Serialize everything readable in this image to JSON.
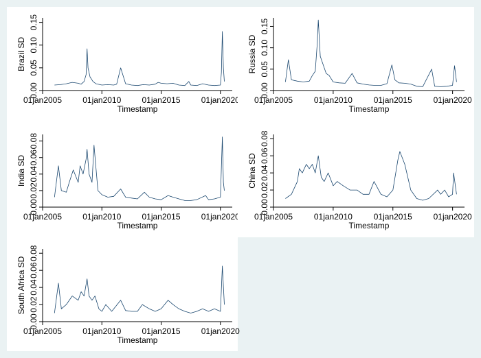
{
  "chart_data": [
    {
      "type": "line",
      "xlabel": "Timestamp",
      "ylabel": "Brazil SD",
      "x_ticks": [
        "01jan2005",
        "01jan2010",
        "01jan2015",
        "01jan2020"
      ],
      "y_ticks": [
        "0.00",
        "0.05",
        "0.10",
        "0.15"
      ],
      "xlim": [
        "2005-01-01",
        "2020-12-31"
      ],
      "ylim": [
        0,
        0.16
      ],
      "series_color": "#1a476f",
      "x": [
        "2006-01",
        "2006-07",
        "2007-01",
        "2007-07",
        "2008-01",
        "2008-04",
        "2008-07",
        "2008-09",
        "2008-10",
        "2008-11",
        "2009-01",
        "2009-04",
        "2009-07",
        "2010-01",
        "2010-07",
        "2011-01",
        "2011-04",
        "2011-08",
        "2012-01",
        "2012-07",
        "2013-01",
        "2013-07",
        "2014-01",
        "2014-07",
        "2014-10",
        "2015-01",
        "2015-07",
        "2016-01",
        "2016-07",
        "2017-01",
        "2017-05",
        "2017-07",
        "2018-01",
        "2018-07",
        "2019-01",
        "2019-07",
        "2020-01",
        "2020-02",
        "2020-03",
        "2020-04",
        "2020-05"
      ],
      "values": [
        0.012,
        0.013,
        0.015,
        0.018,
        0.016,
        0.014,
        0.02,
        0.035,
        0.092,
        0.05,
        0.03,
        0.02,
        0.015,
        0.012,
        0.013,
        0.012,
        0.014,
        0.05,
        0.015,
        0.012,
        0.011,
        0.013,
        0.012,
        0.014,
        0.018,
        0.016,
        0.015,
        0.016,
        0.012,
        0.011,
        0.02,
        0.012,
        0.011,
        0.015,
        0.012,
        0.011,
        0.012,
        0.04,
        0.13,
        0.05,
        0.02
      ]
    },
    {
      "type": "line",
      "xlabel": "Timestamp",
      "ylabel": "Russia SD",
      "x_ticks": [
        "01jan2005",
        "01jan2010",
        "01jan2015",
        "01jan2020"
      ],
      "y_ticks": [
        "0.00",
        "0.05",
        "0.10",
        "0.15"
      ],
      "xlim": [
        "2005-01-01",
        "2020-12-31"
      ],
      "ylim": [
        0,
        0.17
      ],
      "series_color": "#1a476f",
      "x": [
        "2006-01",
        "2006-04",
        "2006-07",
        "2007-01",
        "2007-07",
        "2008-01",
        "2008-04",
        "2008-07",
        "2008-09",
        "2008-10",
        "2008-12",
        "2009-03",
        "2009-06",
        "2009-09",
        "2010-01",
        "2010-07",
        "2011-01",
        "2011-08",
        "2012-01",
        "2012-07",
        "2013-01",
        "2013-07",
        "2014-01",
        "2014-07",
        "2014-12",
        "2015-03",
        "2015-07",
        "2016-01",
        "2016-07",
        "2017-01",
        "2017-07",
        "2018-04",
        "2018-07",
        "2019-01",
        "2019-07",
        "2020-01",
        "2020-03",
        "2020-05"
      ],
      "values": [
        0.02,
        0.072,
        0.025,
        0.022,
        0.02,
        0.022,
        0.035,
        0.045,
        0.11,
        0.165,
        0.08,
        0.06,
        0.04,
        0.035,
        0.02,
        0.018,
        0.017,
        0.04,
        0.018,
        0.015,
        0.013,
        0.012,
        0.012,
        0.016,
        0.06,
        0.025,
        0.018,
        0.017,
        0.015,
        0.01,
        0.009,
        0.05,
        0.01,
        0.009,
        0.01,
        0.012,
        0.058,
        0.02
      ]
    },
    {
      "type": "line",
      "xlabel": "Timestamp",
      "ylabel": "India SD",
      "x_ticks": [
        "01jan2005",
        "01jan2010",
        "01jan2015",
        "01jan2020"
      ],
      "y_ticks": [
        "0.00",
        "0.02",
        "0.04",
        "0.06",
        "0.08"
      ],
      "xlim": [
        "2005-01-01",
        "2020-12-31"
      ],
      "ylim": [
        0,
        0.088
      ],
      "series_color": "#1a476f",
      "x": [
        "2006-01",
        "2006-05",
        "2006-08",
        "2007-01",
        "2007-04",
        "2007-08",
        "2008-01",
        "2008-03",
        "2008-06",
        "2008-09",
        "2008-10",
        "2008-12",
        "2009-03",
        "2009-05",
        "2009-09",
        "2010-01",
        "2010-07",
        "2011-01",
        "2011-08",
        "2012-01",
        "2012-07",
        "2013-01",
        "2013-08",
        "2014-01",
        "2014-07",
        "2015-01",
        "2015-08",
        "2016-01",
        "2016-07",
        "2017-01",
        "2017-07",
        "2018-01",
        "2018-10",
        "2019-01",
        "2019-07",
        "2020-01",
        "2020-03",
        "2020-04",
        "2020-05"
      ],
      "values": [
        0.012,
        0.05,
        0.02,
        0.018,
        0.03,
        0.045,
        0.03,
        0.05,
        0.04,
        0.058,
        0.07,
        0.04,
        0.03,
        0.075,
        0.02,
        0.015,
        0.012,
        0.013,
        0.022,
        0.012,
        0.011,
        0.01,
        0.018,
        0.012,
        0.01,
        0.009,
        0.014,
        0.012,
        0.01,
        0.008,
        0.008,
        0.009,
        0.014,
        0.009,
        0.01,
        0.012,
        0.085,
        0.03,
        0.02
      ]
    },
    {
      "type": "line",
      "xlabel": "Timestamp",
      "ylabel": "China SD",
      "x_ticks": [
        "01jan2005",
        "01jan2010",
        "01jan2015",
        "01jan2020"
      ],
      "y_ticks": [
        "0.00",
        "0.02",
        "0.04",
        "0.06",
        "0.08"
      ],
      "xlim": [
        "2005-01-01",
        "2020-12-31"
      ],
      "ylim": [
        0,
        0.085
      ],
      "series_color": "#1a476f",
      "x": [
        "2006-01",
        "2006-07",
        "2007-01",
        "2007-03",
        "2007-06",
        "2007-10",
        "2008-01",
        "2008-04",
        "2008-07",
        "2008-10",
        "2009-01",
        "2009-04",
        "2009-08",
        "2010-01",
        "2010-05",
        "2010-11",
        "2011-06",
        "2012-01",
        "2012-07",
        "2013-01",
        "2013-06",
        "2014-01",
        "2014-07",
        "2015-01",
        "2015-06",
        "2015-08",
        "2016-01",
        "2016-03",
        "2016-07",
        "2017-01",
        "2017-07",
        "2018-01",
        "2018-10",
        "2019-01",
        "2019-05",
        "2019-09",
        "2020-01",
        "2020-02",
        "2020-05"
      ],
      "values": [
        0.01,
        0.015,
        0.03,
        0.045,
        0.04,
        0.05,
        0.045,
        0.05,
        0.04,
        0.06,
        0.035,
        0.03,
        0.04,
        0.025,
        0.03,
        0.025,
        0.02,
        0.02,
        0.015,
        0.015,
        0.03,
        0.015,
        0.012,
        0.02,
        0.055,
        0.065,
        0.05,
        0.04,
        0.02,
        0.01,
        0.008,
        0.01,
        0.02,
        0.015,
        0.02,
        0.012,
        0.015,
        0.04,
        0.015
      ]
    },
    {
      "type": "line",
      "xlabel": "Timestamp",
      "ylabel": "South Africa SD",
      "x_ticks": [
        "01jan2005",
        "01jan2010",
        "01jan2015",
        "01jan2020"
      ],
      "y_ticks": [
        "0.00",
        "0.02",
        "0.04",
        "0.06",
        "0.08"
      ],
      "xlim": [
        "2005-01-01",
        "2020-12-31"
      ],
      "ylim": [
        0,
        0.085
      ],
      "series_color": "#1a476f",
      "x": [
        "2006-01",
        "2006-05",
        "2006-08",
        "2007-01",
        "2007-07",
        "2008-01",
        "2008-04",
        "2008-07",
        "2008-10",
        "2008-12",
        "2009-03",
        "2009-06",
        "2009-10",
        "2010-01",
        "2010-05",
        "2010-11",
        "2011-08",
        "2012-01",
        "2012-07",
        "2013-01",
        "2013-06",
        "2014-01",
        "2014-07",
        "2015-01",
        "2015-08",
        "2016-01",
        "2016-07",
        "2017-01",
        "2017-07",
        "2018-01",
        "2018-07",
        "2019-01",
        "2019-07",
        "2020-01",
        "2020-03",
        "2020-05"
      ],
      "values": [
        0.01,
        0.045,
        0.015,
        0.02,
        0.03,
        0.025,
        0.035,
        0.03,
        0.05,
        0.03,
        0.025,
        0.03,
        0.015,
        0.012,
        0.02,
        0.012,
        0.025,
        0.013,
        0.012,
        0.012,
        0.02,
        0.015,
        0.012,
        0.015,
        0.025,
        0.02,
        0.015,
        0.012,
        0.01,
        0.012,
        0.015,
        0.012,
        0.015,
        0.012,
        0.065,
        0.02
      ]
    }
  ]
}
